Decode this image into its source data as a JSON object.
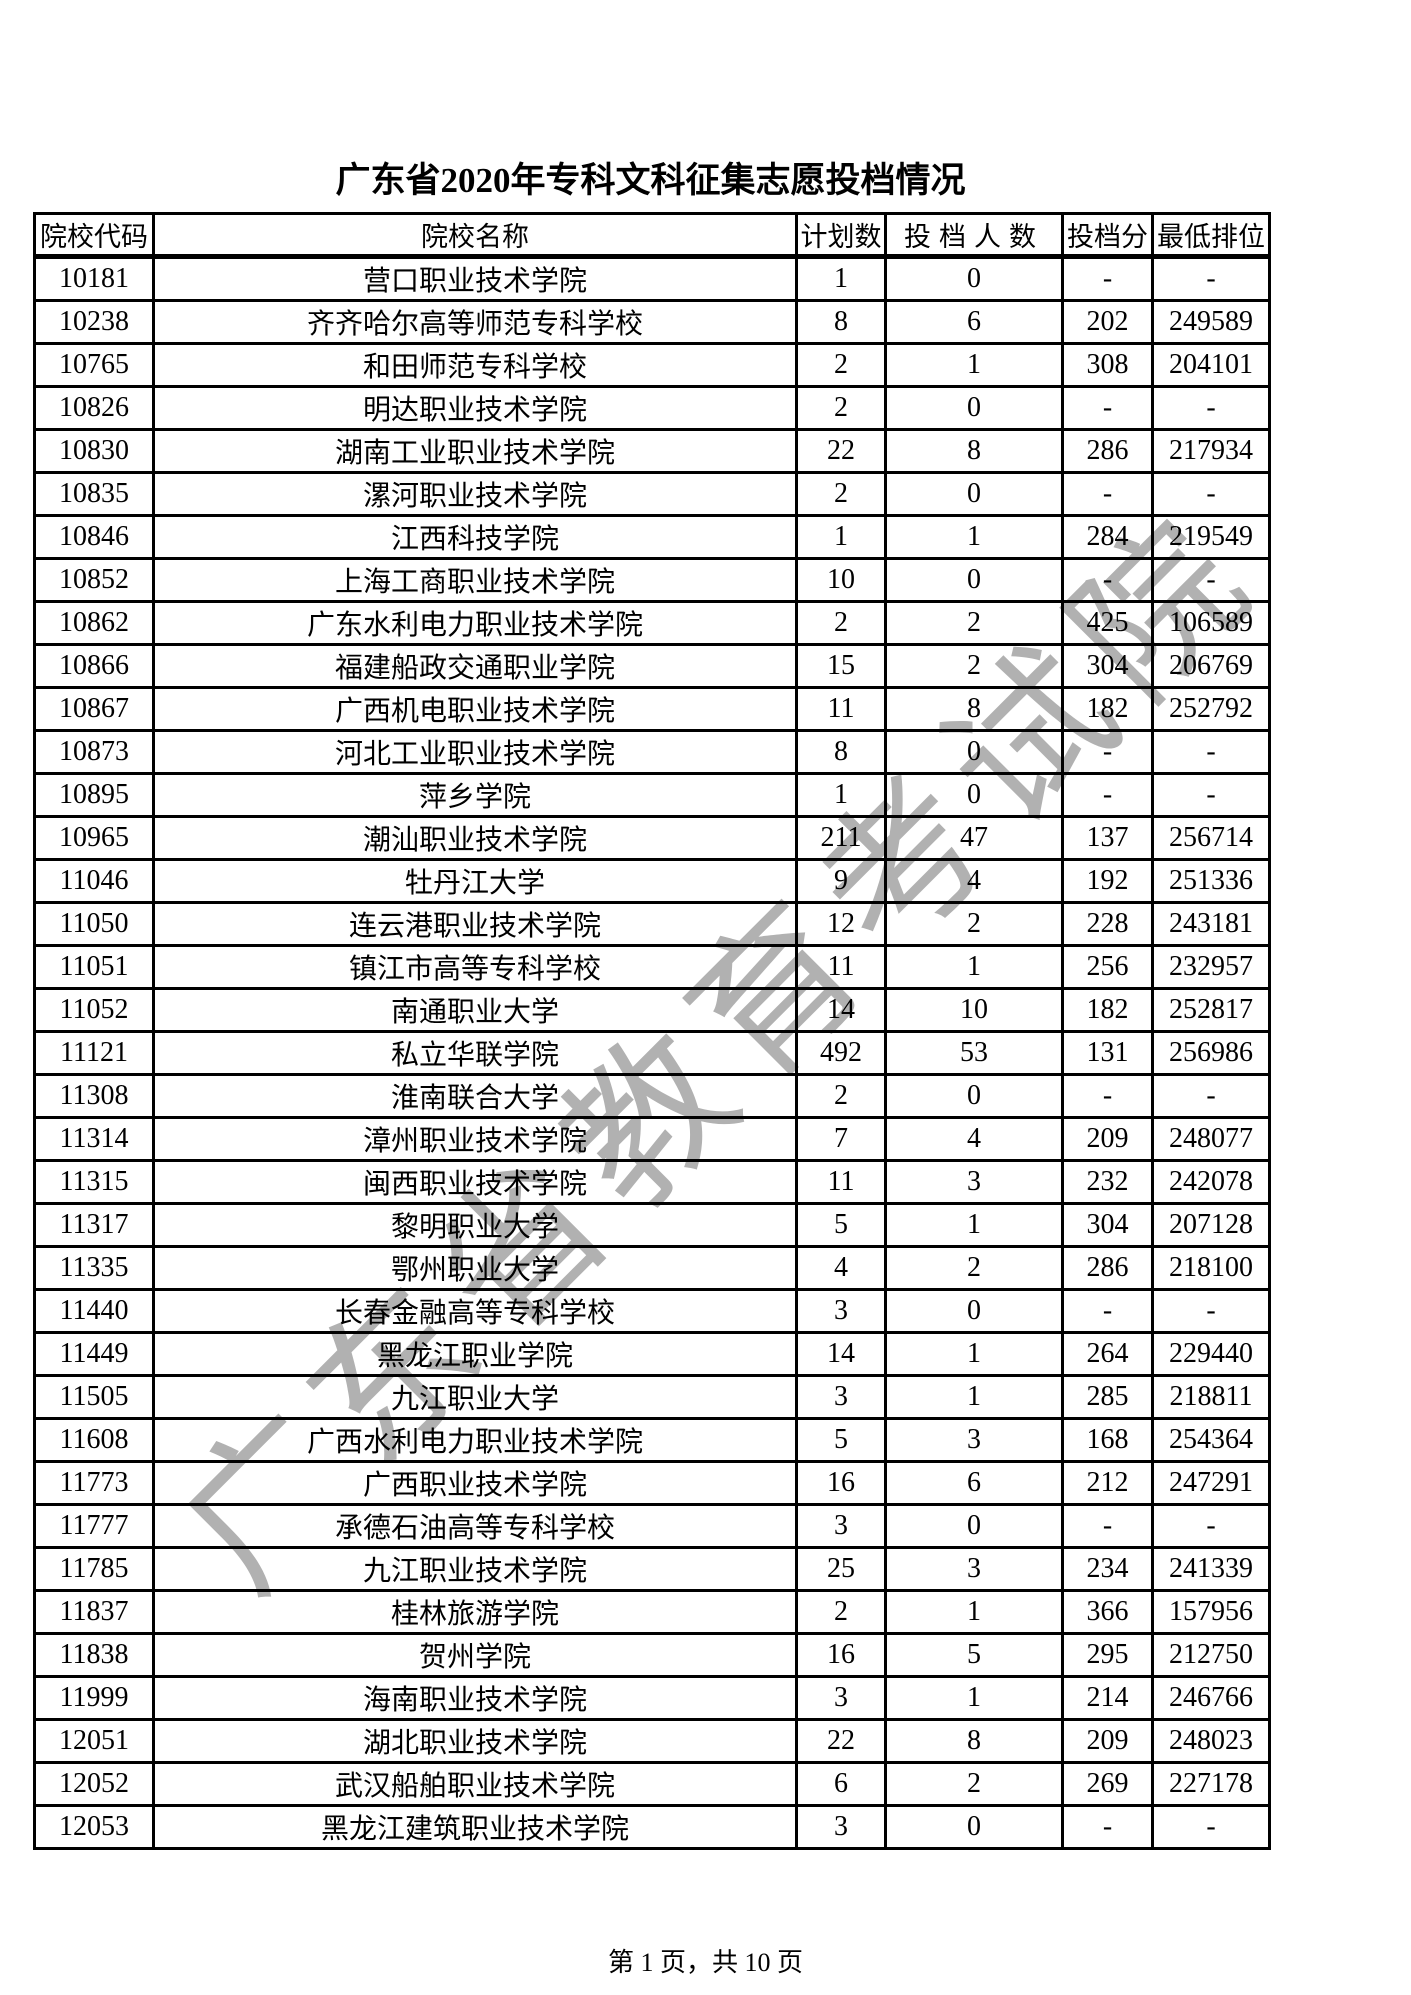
{
  "page": {
    "title": "广东省2020年专科文科征集志愿投档情况",
    "footer": "第 1 页，共 10 页",
    "watermark": "广东省教育考试院"
  },
  "table": {
    "columns": [
      "院校代码",
      "院校名称",
      "计划数",
      "投档人数",
      "投档分",
      "最低排位"
    ],
    "rows": [
      [
        "10181",
        "营口职业技术学院",
        "1",
        "0",
        "-",
        "-"
      ],
      [
        "10238",
        "齐齐哈尔高等师范专科学校",
        "8",
        "6",
        "202",
        "249589"
      ],
      [
        "10765",
        "和田师范专科学校",
        "2",
        "1",
        "308",
        "204101"
      ],
      [
        "10826",
        "明达职业技术学院",
        "2",
        "0",
        "-",
        "-"
      ],
      [
        "10830",
        "湖南工业职业技术学院",
        "22",
        "8",
        "286",
        "217934"
      ],
      [
        "10835",
        "漯河职业技术学院",
        "2",
        "0",
        "-",
        "-"
      ],
      [
        "10846",
        "江西科技学院",
        "1",
        "1",
        "284",
        "219549"
      ],
      [
        "10852",
        "上海工商职业技术学院",
        "10",
        "0",
        "-",
        "-"
      ],
      [
        "10862",
        "广东水利电力职业技术学院",
        "2",
        "2",
        "425",
        "106589"
      ],
      [
        "10866",
        "福建船政交通职业学院",
        "15",
        "2",
        "304",
        "206769"
      ],
      [
        "10867",
        "广西机电职业技术学院",
        "11",
        "8",
        "182",
        "252792"
      ],
      [
        "10873",
        "河北工业职业技术学院",
        "8",
        "0",
        "-",
        "-"
      ],
      [
        "10895",
        "萍乡学院",
        "1",
        "0",
        "-",
        "-"
      ],
      [
        "10965",
        "潮汕职业技术学院",
        "211",
        "47",
        "137",
        "256714"
      ],
      [
        "11046",
        "牡丹江大学",
        "9",
        "4",
        "192",
        "251336"
      ],
      [
        "11050",
        "连云港职业技术学院",
        "12",
        "2",
        "228",
        "243181"
      ],
      [
        "11051",
        "镇江市高等专科学校",
        "11",
        "1",
        "256",
        "232957"
      ],
      [
        "11052",
        "南通职业大学",
        "14",
        "10",
        "182",
        "252817"
      ],
      [
        "11121",
        "私立华联学院",
        "492",
        "53",
        "131",
        "256986"
      ],
      [
        "11308",
        "淮南联合大学",
        "2",
        "0",
        "-",
        "-"
      ],
      [
        "11314",
        "漳州职业技术学院",
        "7",
        "4",
        "209",
        "248077"
      ],
      [
        "11315",
        "闽西职业技术学院",
        "11",
        "3",
        "232",
        "242078"
      ],
      [
        "11317",
        "黎明职业大学",
        "5",
        "1",
        "304",
        "207128"
      ],
      [
        "11335",
        "鄂州职业大学",
        "4",
        "2",
        "286",
        "218100"
      ],
      [
        "11440",
        "长春金融高等专科学校",
        "3",
        "0",
        "-",
        "-"
      ],
      [
        "11449",
        "黑龙江职业学院",
        "14",
        "1",
        "264",
        "229440"
      ],
      [
        "11505",
        "九江职业大学",
        "3",
        "1",
        "285",
        "218811"
      ],
      [
        "11608",
        "广西水利电力职业技术学院",
        "5",
        "3",
        "168",
        "254364"
      ],
      [
        "11773",
        "广西职业技术学院",
        "16",
        "6",
        "212",
        "247291"
      ],
      [
        "11777",
        "承德石油高等专科学校",
        "3",
        "0",
        "-",
        "-"
      ],
      [
        "11785",
        "九江职业技术学院",
        "25",
        "3",
        "234",
        "241339"
      ],
      [
        "11837",
        "桂林旅游学院",
        "2",
        "1",
        "366",
        "157956"
      ],
      [
        "11838",
        "贺州学院",
        "16",
        "5",
        "295",
        "212750"
      ],
      [
        "11999",
        "海南职业技术学院",
        "3",
        "1",
        "214",
        "246766"
      ],
      [
        "12051",
        "湖北职业技术学院",
        "22",
        "8",
        "209",
        "248023"
      ],
      [
        "12052",
        "武汉船舶职业技术学院",
        "6",
        "2",
        "269",
        "227178"
      ],
      [
        "12053",
        "黑龙江建筑职业技术学院",
        "3",
        "0",
        "-",
        "-"
      ]
    ]
  }
}
